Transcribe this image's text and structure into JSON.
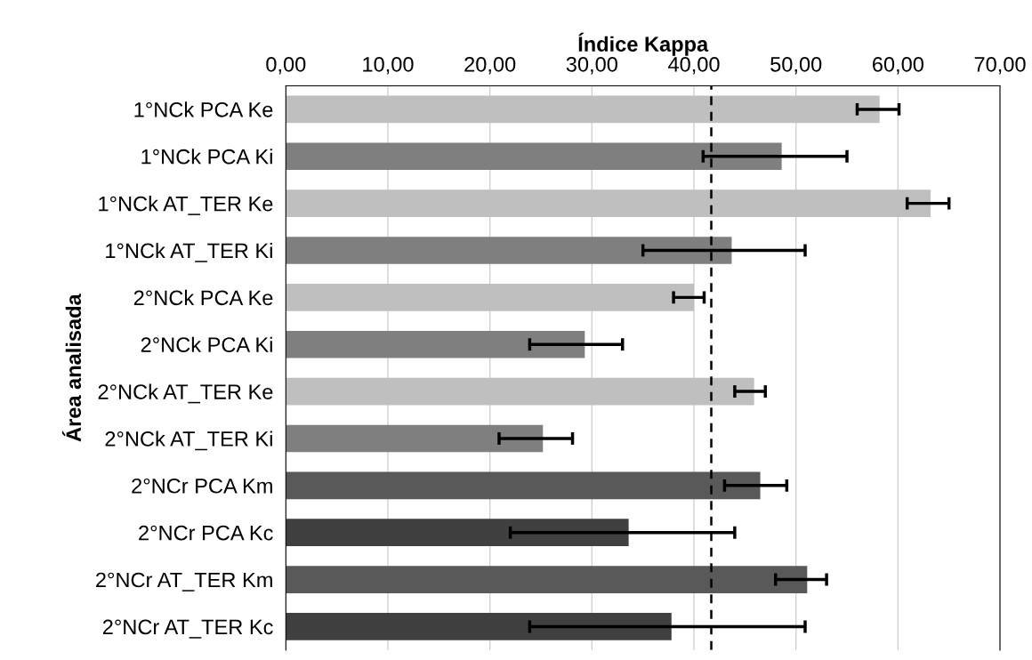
{
  "chart_data": {
    "type": "bar",
    "orientation": "horizontal",
    "xlabel": "Índice Kappa",
    "ylabel": "Área analisada",
    "categories": [
      "1°NCk PCA Ke",
      "1°NCk PCA Ki",
      "1°NCk AT_TER Ke",
      "1°NCk AT_TER Ki",
      "2°NCk PCA Ke",
      "2°NCk PCA Ki",
      "2°NCk AT_TER Ke",
      "2°NCk AT_TER Ki",
      "2°NCr PCA Km",
      "2°NCr PCA Kc",
      "2°NCr AT_TER Km",
      "2°NCr AT_TER Kc"
    ],
    "values": [
      58.2,
      48.6,
      63.2,
      43.7,
      40.0,
      29.3,
      45.9,
      25.2,
      46.5,
      33.6,
      51.1,
      37.8
    ],
    "errors": [
      [
        56.0,
        60.1
      ],
      [
        40.9,
        55.0
      ],
      [
        60.9,
        65.0
      ],
      [
        35.0,
        50.9
      ],
      [
        38.0,
        41.0
      ],
      [
        23.9,
        33.0
      ],
      [
        44.0,
        47.0
      ],
      [
        20.9,
        28.1
      ],
      [
        43.0,
        49.1
      ],
      [
        22.0,
        44.0
      ],
      [
        48.0,
        53.0
      ],
      [
        23.9,
        50.9
      ]
    ],
    "colors": [
      "#bfbfbf",
      "#7f7f7f",
      "#bfbfbf",
      "#7f7f7f",
      "#bfbfbf",
      "#7f7f7f",
      "#bfbfbf",
      "#7f7f7f",
      "#595959",
      "#404040",
      "#595959",
      "#404040"
    ],
    "xlim": [
      0,
      70
    ],
    "xticks": [
      {
        "value": 0,
        "label": "0,00"
      },
      {
        "value": 10,
        "label": "10,00"
      },
      {
        "value": 20,
        "label": "20,00"
      },
      {
        "value": 30,
        "label": "30,00"
      },
      {
        "value": 40,
        "label": "40,00"
      },
      {
        "value": 50,
        "label": "50,00"
      },
      {
        "value": 60,
        "label": "60,00"
      },
      {
        "value": 70,
        "label": "70,00"
      }
    ],
    "ref_lines": [
      {
        "axis": "x",
        "value": 41.7,
        "color": "#000000",
        "line_style": "dashed"
      }
    ],
    "grid": "x",
    "legend": false
  }
}
